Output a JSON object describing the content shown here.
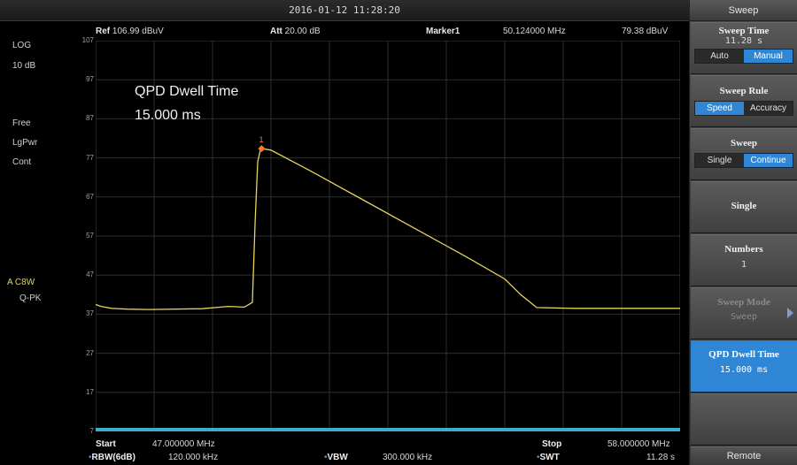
{
  "datetime": "2016-01-12   11:28:20",
  "header": {
    "ref_label": "Ref",
    "ref_value": "106.99 dBuV",
    "att_label": "Att",
    "att_value": "20.00 dB",
    "marker_label": "Marker1",
    "marker_freq": "50.124000 MHz",
    "marker_level": "79.38 dBuV"
  },
  "left_panel": {
    "scale_type": "LOG",
    "scale_div": "10 dB",
    "trigger": "Free",
    "avg_type": "LgPwr",
    "sweep_mode": "Cont",
    "trace_label": "A",
    "detector_1": "C8W",
    "detector_2": "Q-PK"
  },
  "plot": {
    "annotation_title": "QPD Dwell Time",
    "annotation_value": "15.000 ms",
    "marker_number": "1",
    "y_ticks": [
      "107",
      "97",
      "87",
      "77",
      "67",
      "57",
      "47",
      "37",
      "27",
      "17",
      "7"
    ],
    "trace_color": "#e6d35a",
    "marker_color": "#ff7a2a",
    "grid_color": "#2e2e2e"
  },
  "chart_data": {
    "type": "line",
    "x_unit": "MHz",
    "y_unit": "dBuV",
    "xlim": [
      47.0,
      58.0
    ],
    "ylim": [
      7,
      107
    ],
    "grid": true,
    "series": [
      {
        "x": [
          47.0,
          47.1,
          47.3,
          47.6,
          48.0,
          49.0,
          49.5,
          49.8,
          49.95,
          50.0,
          50.05,
          50.1,
          50.124,
          50.3,
          51.0,
          52.0,
          53.0,
          54.0,
          54.7,
          55.0,
          55.3,
          56.0,
          57.0,
          58.0
        ],
        "y": [
          39.5,
          39.0,
          38.5,
          38.3,
          38.2,
          38.4,
          39.0,
          38.8,
          40.0,
          60.0,
          76.0,
          79.0,
          79.4,
          79.0,
          74.0,
          66.5,
          59.0,
          51.5,
          46.0,
          42.0,
          38.7,
          38.5,
          38.5,
          38.5
        ]
      }
    ],
    "marker": {
      "label": "1",
      "x": 50.124,
      "y": 79.38
    }
  },
  "footer": {
    "start_label": "Start",
    "start_value": "47.000000 MHz",
    "stop_label": "Stop",
    "stop_value": "58.000000 MHz",
    "rbw_label": "RBW(6dB)",
    "rbw_value": "120.000 kHz",
    "vbw_label": "VBW",
    "vbw_value": "300.000 kHz",
    "swt_label": "SWT",
    "swt_value": "11.28 s"
  },
  "menu": {
    "title": "Sweep",
    "sweep_time_label": "Sweep Time",
    "sweep_time_value": "11.28 s",
    "sweep_time_auto": "Auto",
    "sweep_time_manual": "Manual",
    "sweep_rule_label": "Sweep Rule",
    "sweep_rule_speed": "Speed",
    "sweep_rule_accuracy": "Accuracy",
    "sweep_label": "Sweep",
    "sweep_single": "Single",
    "sweep_continue": "Continue",
    "single_label": "Single",
    "numbers_label": "Numbers",
    "numbers_value": "1",
    "sweep_mode_label": "Sweep Mode",
    "sweep_mode_value": "Sweep",
    "qpd_label": "QPD Dwell Time",
    "qpd_value": "15.000 ms",
    "remote_label": "Remote"
  }
}
